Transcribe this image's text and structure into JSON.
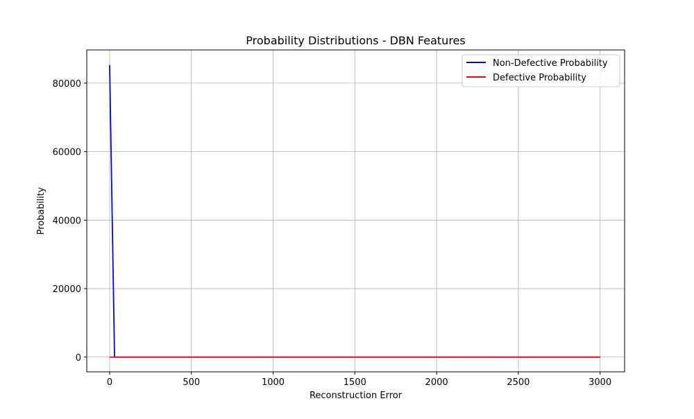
{
  "chart_data": {
    "type": "line",
    "title": "Probability Distributions - DBN Features",
    "xlabel": "Reconstruction Error",
    "ylabel": "Probability",
    "xlim": [
      -140,
      3150
    ],
    "ylim": [
      -4300,
      89700
    ],
    "xticks": [
      0,
      500,
      1000,
      1500,
      2000,
      2500,
      3000
    ],
    "yticks": [
      0,
      20000,
      40000,
      60000,
      80000
    ],
    "grid": true,
    "legend_position": "upper right",
    "series": [
      {
        "name": "Non-Defective Probability",
        "color": "#0000ff",
        "x": [
          0,
          30,
          3000
        ],
        "y": [
          85300,
          0,
          0
        ]
      },
      {
        "name": "Defective Probability",
        "color": "#ff0000",
        "x": [
          0,
          3000
        ],
        "y": [
          0,
          0
        ]
      }
    ]
  }
}
